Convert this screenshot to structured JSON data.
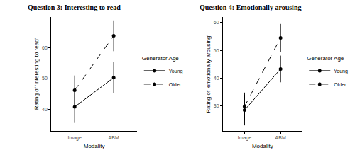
{
  "chart_data": [
    {
      "type": "line",
      "title": "Question 3: Interesting to read",
      "x_label": "Modality",
      "y_label": "Rating of 'interesting to read'",
      "legend_title": "Generator Age",
      "categories": [
        "Image",
        "ABM"
      ],
      "series": [
        {
          "name": "Young",
          "color": "#000000",
          "line_style": "solid",
          "marker": "circle",
          "values": [
            40.8,
            50.3
          ],
          "error": [
            5.2,
            5.0
          ]
        },
        {
          "name": "Older",
          "color": "#000000",
          "line_style": "dash",
          "marker": "circle",
          "values": [
            46.2,
            63.9
          ],
          "error": [
            4.8,
            5.0
          ]
        }
      ],
      "ylim": [
        33,
        70
      ],
      "yticks": [
        40,
        50,
        60
      ],
      "grid": false,
      "legend": "right"
    },
    {
      "type": "line",
      "title": "Question 4: Emotionally arousing",
      "x_label": "Modality",
      "y_label": "Rating of 'emotionally arousing'",
      "legend_title": "Generator Age",
      "categories": [
        "Image",
        "ABM"
      ],
      "series": [
        {
          "name": "Young",
          "color": "#000000",
          "line_style": "solid",
          "marker": "circle",
          "values": [
            28.5,
            43.3
          ],
          "error": [
            5.5,
            4.8
          ]
        },
        {
          "name": "Older",
          "color": "#000000",
          "line_style": "dash",
          "marker": "circle",
          "values": [
            29.8,
            54.5
          ],
          "error": [
            5.0,
            5.0
          ]
        }
      ],
      "ylim": [
        21,
        62
      ],
      "yticks": [
        30,
        40,
        50,
        60
      ],
      "grid": false,
      "legend": "right"
    }
  ]
}
